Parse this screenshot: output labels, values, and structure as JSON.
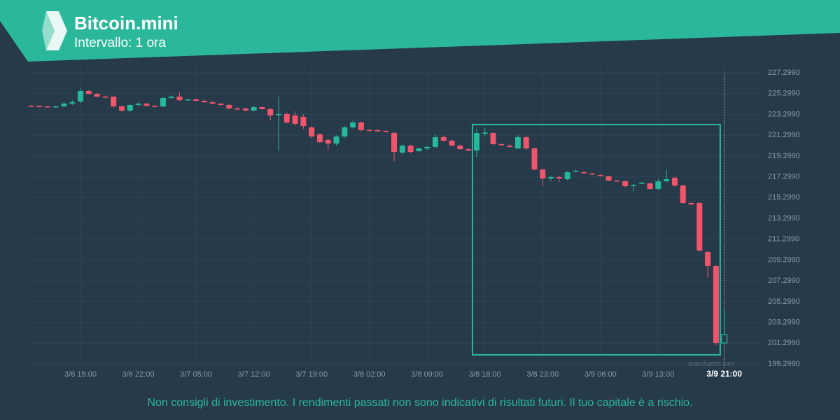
{
  "header": {
    "title": "Bitcoin.mini",
    "subtitle": "Intervallo: 1 ora"
  },
  "chart_data": {
    "type": "candlestick",
    "x": [
      "3/6 09:00",
      "3/6 10:00",
      "3/6 11:00",
      "3/6 12:00",
      "3/6 13:00",
      "3/6 14:00",
      "3/6 15:00",
      "3/6 16:00",
      "3/6 17:00",
      "3/6 18:00",
      "3/6 19:00",
      "3/6 20:00",
      "3/6 21:00",
      "3/6 22:00",
      "3/6 23:00",
      "3/7 00:00",
      "3/7 01:00",
      "3/7 02:00",
      "3/7 03:00",
      "3/7 04:00",
      "3/7 05:00",
      "3/7 06:00",
      "3/7 07:00",
      "3/7 08:00",
      "3/7 09:00",
      "3/7 10:00",
      "3/7 11:00",
      "3/7 12:00",
      "3/7 13:00",
      "3/7 14:00",
      "3/7 15:00",
      "3/7 16:00",
      "3/7 17:00",
      "3/7 18:00",
      "3/7 19:00",
      "3/7 20:00",
      "3/7 21:00",
      "3/7 22:00",
      "3/7 23:00",
      "3/8 00:00",
      "3/8 01:00",
      "3/8 02:00",
      "3/8 03:00",
      "3/8 04:00",
      "3/8 05:00",
      "3/8 06:00",
      "3/8 07:00",
      "3/8 08:00",
      "3/8 09:00",
      "3/8 10:00",
      "3/8 11:00",
      "3/8 12:00",
      "3/8 13:00",
      "3/8 14:00",
      "3/8 15:00",
      "3/8 16:00",
      "3/8 17:00",
      "3/8 18:00",
      "3/8 19:00",
      "3/8 20:00",
      "3/8 21:00",
      "3/8 22:00",
      "3/8 23:00",
      "3/9 00:00",
      "3/9 01:00",
      "3/9 02:00",
      "3/9 03:00",
      "3/9 04:00",
      "3/9 05:00",
      "3/9 06:00",
      "3/9 07:00",
      "3/9 08:00",
      "3/9 09:00",
      "3/9 10:00",
      "3/9 11:00",
      "3/9 12:00",
      "3/9 13:00",
      "3/9 14:00",
      "3/9 15:00",
      "3/9 16:00",
      "3/9 17:00",
      "3/9 18:00",
      "3/9 19:00",
      "3/9 20:00",
      "3/9 21:00"
    ],
    "ohlc": [
      [
        224.13,
        224.2,
        224.05,
        224.1
      ],
      [
        224.1,
        224.15,
        223.98,
        224.07
      ],
      [
        224.07,
        224.12,
        223.95,
        224.0
      ],
      [
        224.0,
        224.13,
        223.95,
        224.07
      ],
      [
        224.07,
        224.5,
        224.0,
        224.34
      ],
      [
        224.34,
        224.7,
        224.2,
        224.47
      ],
      [
        224.54,
        225.8,
        224.4,
        225.55
      ],
      [
        225.55,
        225.62,
        225.2,
        225.28
      ],
      [
        225.28,
        225.35,
        224.95,
        225.01
      ],
      [
        225.01,
        225.1,
        224.85,
        224.94
      ],
      [
        225.01,
        225.05,
        223.95,
        224.07
      ],
      [
        224.07,
        224.15,
        223.55,
        223.67
      ],
      [
        223.67,
        224.3,
        223.55,
        224.2
      ],
      [
        224.2,
        224.45,
        224.1,
        224.34
      ],
      [
        224.34,
        224.4,
        224.05,
        224.13
      ],
      [
        224.13,
        224.2,
        223.95,
        224.07
      ],
      [
        224.07,
        224.95,
        224.0,
        224.88
      ],
      [
        224.88,
        225.1,
        224.8,
        225.01
      ],
      [
        225.01,
        225.45,
        224.6,
        224.67
      ],
      [
        224.67,
        224.8,
        224.65,
        224.74
      ],
      [
        224.74,
        224.8,
        224.55,
        224.61
      ],
      [
        224.61,
        224.7,
        224.4,
        224.47
      ],
      [
        224.47,
        224.55,
        224.25,
        224.34
      ],
      [
        224.34,
        224.4,
        224.1,
        224.2
      ],
      [
        224.2,
        224.3,
        223.8,
        223.87
      ],
      [
        223.87,
        224.0,
        223.7,
        223.8
      ],
      [
        223.87,
        223.95,
        223.6,
        223.67
      ],
      [
        223.67,
        224.1,
        223.6,
        224.0
      ],
      [
        224.0,
        224.1,
        223.75,
        223.8
      ],
      [
        223.8,
        223.9,
        222.7,
        223.2
      ],
      [
        223.26,
        225.0,
        219.8,
        223.33
      ],
      [
        223.33,
        223.5,
        222.4,
        222.52
      ],
      [
        223.19,
        223.6,
        222.2,
        222.39
      ],
      [
        223.06,
        223.3,
        221.9,
        222.18
      ],
      [
        222.05,
        222.2,
        221.0,
        221.18
      ],
      [
        221.38,
        221.5,
        220.5,
        220.64
      ],
      [
        220.84,
        221.0,
        219.9,
        220.5
      ],
      [
        220.5,
        221.3,
        220.3,
        221.18
      ],
      [
        221.18,
        222.2,
        221.05,
        222.05
      ],
      [
        222.05,
        222.7,
        221.95,
        222.52
      ],
      [
        222.52,
        222.6,
        221.65,
        221.78
      ],
      [
        221.8,
        221.9,
        221.7,
        221.78
      ],
      [
        221.78,
        221.85,
        221.65,
        221.71
      ],
      [
        221.71,
        221.78,
        221.55,
        221.65
      ],
      [
        221.51,
        221.6,
        218.8,
        219.69
      ],
      [
        219.63,
        220.4,
        219.5,
        220.3
      ],
      [
        220.3,
        220.4,
        219.55,
        219.69
      ],
      [
        219.76,
        220.1,
        219.65,
        220.03
      ],
      [
        220.03,
        220.25,
        219.9,
        220.17
      ],
      [
        220.17,
        221.4,
        220.05,
        221.11
      ],
      [
        221.11,
        221.25,
        220.7,
        220.77
      ],
      [
        220.77,
        220.9,
        220.25,
        220.3
      ],
      [
        220.3,
        220.4,
        219.9,
        219.96
      ],
      [
        219.96,
        220.05,
        219.75,
        219.83
      ],
      [
        219.83,
        221.95,
        219.2,
        221.51
      ],
      [
        221.51,
        222.0,
        221.2,
        221.55
      ],
      [
        221.51,
        221.6,
        220.35,
        220.44
      ],
      [
        220.44,
        220.5,
        220.25,
        220.37
      ],
      [
        220.3,
        220.45,
        220.1,
        220.17
      ],
      [
        220.03,
        221.3,
        219.95,
        221.11
      ],
      [
        221.11,
        221.2,
        219.9,
        220.03
      ],
      [
        220.03,
        220.1,
        217.9,
        218.01
      ],
      [
        218.01,
        218.1,
        216.4,
        217.14
      ],
      [
        217.14,
        217.35,
        216.9,
        217.27
      ],
      [
        217.27,
        217.4,
        216.8,
        217.14
      ],
      [
        217.07,
        217.85,
        216.95,
        217.74
      ],
      [
        217.82,
        218.0,
        217.75,
        217.88
      ],
      [
        217.74,
        217.85,
        217.6,
        217.68
      ],
      [
        217.61,
        217.7,
        217.48,
        217.54
      ],
      [
        217.47,
        217.55,
        217.35,
        217.41
      ],
      [
        217.34,
        217.4,
        216.88,
        216.94
      ],
      [
        216.94,
        217.0,
        216.8,
        216.87
      ],
      [
        216.87,
        216.95,
        216.3,
        216.4
      ],
      [
        216.5,
        216.6,
        215.9,
        216.53
      ],
      [
        216.67,
        216.8,
        216.6,
        216.73
      ],
      [
        216.67,
        216.75,
        216.05,
        216.13
      ],
      [
        216.13,
        217.1,
        216.0,
        216.87
      ],
      [
        216.87,
        218.0,
        216.8,
        217.07
      ],
      [
        217.21,
        217.3,
        216.35,
        216.46
      ],
      [
        216.46,
        216.55,
        214.7,
        214.78
      ],
      [
        214.78,
        214.85,
        214.55,
        214.65
      ],
      [
        214.78,
        214.85,
        210.1,
        210.21
      ],
      [
        210.07,
        210.15,
        207.6,
        208.72
      ],
      [
        208.72,
        208.8,
        201.1,
        201.32
      ],
      [
        201.32,
        204.5,
        201.25,
        202.13
      ]
    ],
    "up_color": "#26b89a",
    "down_color": "#f0556b",
    "ylim": [
      199.299,
      227.299
    ],
    "yticks": [
      {
        "value": 199.299,
        "label": "199.2990"
      },
      {
        "value": 201.299,
        "label": "201.2990"
      },
      {
        "value": 203.299,
        "label": "203.2990"
      },
      {
        "value": 205.299,
        "label": "205.2990"
      },
      {
        "value": 207.299,
        "label": "207.2990"
      },
      {
        "value": 209.299,
        "label": "209.2990"
      },
      {
        "value": 211.299,
        "label": "211.2990"
      },
      {
        "value": 213.299,
        "label": "213.2990"
      },
      {
        "value": 215.299,
        "label": "215.2990"
      },
      {
        "value": 217.299,
        "label": "217.2990"
      },
      {
        "value": 219.299,
        "label": "219.2990"
      },
      {
        "value": 221.299,
        "label": "221.2990"
      },
      {
        "value": 223.299,
        "label": "223.2990"
      },
      {
        "value": 225.299,
        "label": "225.2990"
      },
      {
        "value": 227.299,
        "label": "227.2990"
      }
    ],
    "xticks": [
      "3/6 15:00",
      "3/6 22:00",
      "3/7 05:00",
      "3/7 12:00",
      "3/7 19:00",
      "3/8 02:00",
      "3/8 09:00",
      "3/8 16:00",
      "3/8 23:00",
      "3/9 06:00",
      "3/9 13:00",
      "3/9 21:00"
    ],
    "grid": true,
    "pattern_box": {
      "start": "3/8 15:00",
      "end": "3/9 20:00",
      "high": 222.32,
      "low": 200.18
    },
    "watermark": "autochartist.com"
  },
  "footer": "Non consigli di investimento. I rendimenti passati non sono indicativi di risultati futuri. Il tuo capitale è a rischio."
}
